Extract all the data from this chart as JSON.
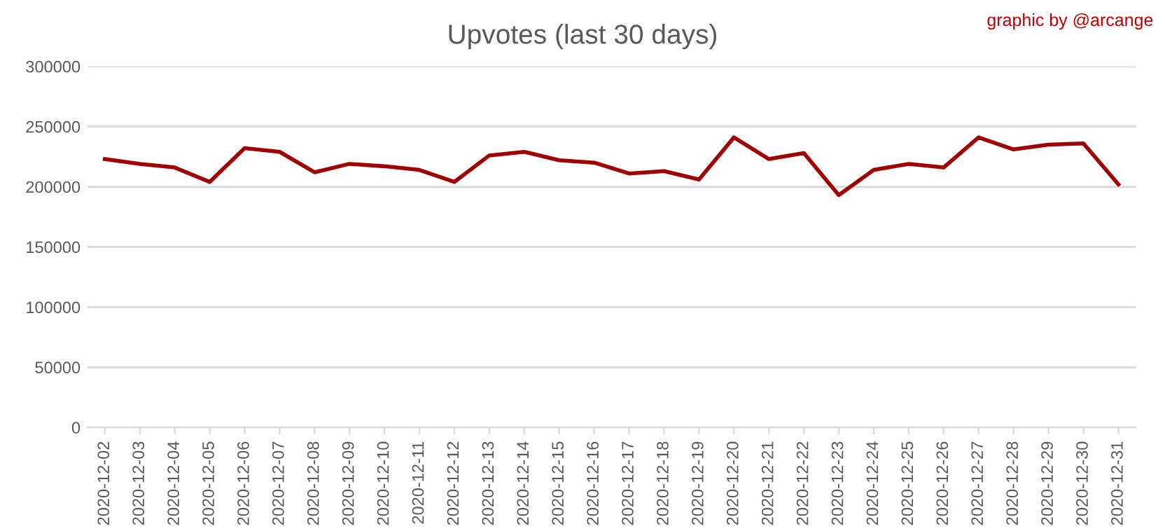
{
  "chart_data": {
    "type": "line",
    "title": "Upvotes (last 30 days)",
    "annotations": [
      "graphic by @arcange"
    ],
    "categories": [
      "2020-12-02",
      "2020-12-03",
      "2020-12-04",
      "2020-12-05",
      "2020-12-06",
      "2020-12-07",
      "2020-12-08",
      "2020-12-09",
      "2020-12-10",
      "2020-12-11",
      "2020-12-12",
      "2020-12-13",
      "2020-12-14",
      "2020-12-15",
      "2020-12-16",
      "2020-12-17",
      "2020-12-18",
      "2020-12-19",
      "2020-12-20",
      "2020-12-21",
      "2020-12-22",
      "2020-12-23",
      "2020-12-24",
      "2020-12-25",
      "2020-12-26",
      "2020-12-27",
      "2020-12-28",
      "2020-12-29",
      "2020-12-30",
      "2020-12-31"
    ],
    "series": [
      {
        "color": "#a00000",
        "values": [
          223000,
          219000,
          216000,
          204000,
          232000,
          229000,
          212000,
          219000,
          217000,
          214000,
          204000,
          226000,
          229000,
          222000,
          220000,
          211000,
          213000,
          206000,
          241000,
          223000,
          228000,
          193000,
          214000,
          219000,
          216000,
          241000,
          231000,
          235000,
          236000,
          202000
        ]
      }
    ],
    "ylim": [
      0,
      300000
    ],
    "yticks": [
      0,
      50000,
      100000,
      150000,
      200000,
      250000,
      300000
    ],
    "grid": "y",
    "legend": false,
    "marker": "none",
    "line_style": "solid"
  }
}
